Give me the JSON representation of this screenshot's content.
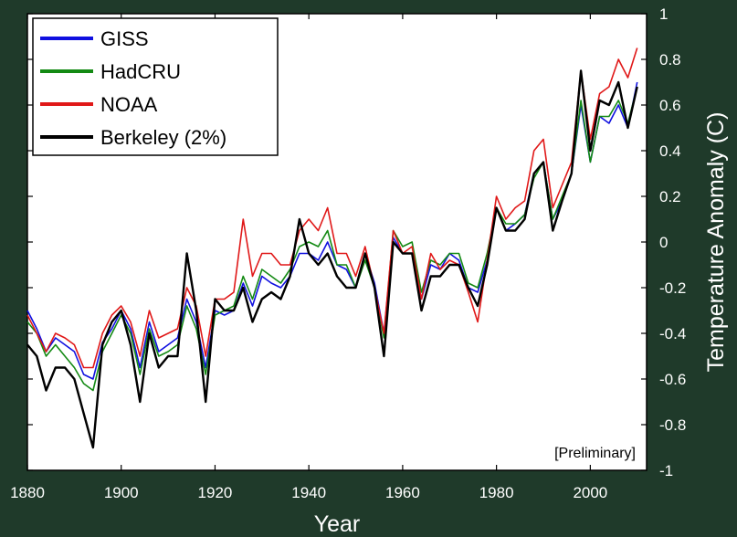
{
  "chart_data": {
    "type": "line",
    "title": "",
    "xlabel": "Year",
    "ylabel": "Temperature Anomaly (C)",
    "xlim": [
      1880,
      2012
    ],
    "ylim": [
      -1,
      1
    ],
    "x_ticks": [
      1880,
      1900,
      1920,
      1940,
      1960,
      1980,
      2000
    ],
    "y_ticks": [
      -1,
      -0.8,
      -0.6,
      -0.4,
      -0.2,
      0,
      0.2,
      0.4,
      0.6,
      0.8,
      1
    ],
    "y_tick_labels": [
      "-1",
      "-0.8",
      "-0.6",
      "-0.4",
      "-0.2",
      "0",
      "0.2",
      "0.4",
      "0.6",
      "0.8",
      "1"
    ],
    "grid": false,
    "legend_position": "top-left",
    "annotation": "[Preliminary]",
    "x": [
      1880,
      1882,
      1884,
      1886,
      1888,
      1890,
      1892,
      1894,
      1896,
      1898,
      1900,
      1902,
      1904,
      1906,
      1908,
      1910,
      1912,
      1914,
      1916,
      1918,
      1920,
      1922,
      1924,
      1926,
      1928,
      1930,
      1932,
      1934,
      1936,
      1938,
      1940,
      1942,
      1944,
      1946,
      1948,
      1950,
      1952,
      1954,
      1956,
      1958,
      1960,
      1962,
      1964,
      1966,
      1968,
      1970,
      1972,
      1974,
      1976,
      1978,
      1980,
      1982,
      1984,
      1986,
      1988,
      1990,
      1992,
      1994,
      1996,
      1998,
      2000,
      2002,
      2004,
      2006,
      2008,
      2010
    ],
    "series": [
      {
        "name": "GISS",
        "color": "#1010e0",
        "values": [
          -0.3,
          -0.38,
          -0.48,
          -0.42,
          -0.45,
          -0.48,
          -0.58,
          -0.6,
          -0.44,
          -0.38,
          -0.3,
          -0.38,
          -0.55,
          -0.35,
          -0.48,
          -0.45,
          -0.42,
          -0.25,
          -0.35,
          -0.55,
          -0.3,
          -0.32,
          -0.3,
          -0.18,
          -0.28,
          -0.15,
          -0.18,
          -0.2,
          -0.15,
          -0.05,
          -0.05,
          -0.08,
          0.0,
          -0.1,
          -0.12,
          -0.2,
          -0.05,
          -0.18,
          -0.4,
          0.02,
          -0.05,
          -0.05,
          -0.25,
          -0.1,
          -0.12,
          -0.05,
          -0.08,
          -0.2,
          -0.22,
          -0.08,
          0.15,
          0.05,
          0.08,
          0.12,
          0.3,
          0.35,
          0.1,
          0.18,
          0.3,
          0.6,
          0.35,
          0.55,
          0.52,
          0.6,
          0.5,
          0.7
        ]
      },
      {
        "name": "HadCRU",
        "color": "#148a14",
        "values": [
          -0.35,
          -0.4,
          -0.5,
          -0.45,
          -0.5,
          -0.55,
          -0.62,
          -0.65,
          -0.48,
          -0.4,
          -0.32,
          -0.4,
          -0.58,
          -0.38,
          -0.5,
          -0.48,
          -0.45,
          -0.28,
          -0.38,
          -0.58,
          -0.32,
          -0.3,
          -0.28,
          -0.15,
          -0.25,
          -0.12,
          -0.15,
          -0.18,
          -0.12,
          -0.02,
          0.0,
          -0.02,
          0.05,
          -0.1,
          -0.1,
          -0.2,
          -0.08,
          -0.2,
          -0.42,
          0.05,
          -0.02,
          0.0,
          -0.22,
          -0.08,
          -0.1,
          -0.05,
          -0.05,
          -0.18,
          -0.2,
          -0.05,
          0.15,
          0.08,
          0.08,
          0.12,
          0.28,
          0.35,
          0.1,
          0.2,
          0.3,
          0.62,
          0.35,
          0.55,
          0.55,
          0.62,
          0.52,
          0.68
        ]
      },
      {
        "name": "NOAA",
        "color": "#e01818",
        "values": [
          -0.32,
          -0.4,
          -0.48,
          -0.4,
          -0.42,
          -0.45,
          -0.55,
          -0.55,
          -0.4,
          -0.32,
          -0.28,
          -0.35,
          -0.5,
          -0.3,
          -0.42,
          -0.4,
          -0.38,
          -0.2,
          -0.28,
          -0.5,
          -0.25,
          -0.25,
          -0.22,
          0.1,
          -0.15,
          -0.05,
          -0.05,
          -0.1,
          -0.1,
          0.05,
          0.1,
          0.05,
          0.15,
          -0.05,
          -0.05,
          -0.15,
          -0.02,
          -0.2,
          -0.4,
          0.05,
          -0.05,
          -0.02,
          -0.25,
          -0.05,
          -0.12,
          -0.08,
          -0.1,
          -0.22,
          -0.35,
          -0.08,
          0.2,
          0.1,
          0.15,
          0.18,
          0.4,
          0.45,
          0.15,
          0.25,
          0.35,
          0.75,
          0.45,
          0.65,
          0.68,
          0.8,
          0.72,
          0.85
        ]
      },
      {
        "name": "Berkeley (2%)",
        "color": "#000000",
        "values": [
          -0.45,
          -0.5,
          -0.65,
          -0.55,
          -0.55,
          -0.6,
          -0.75,
          -0.9,
          -0.45,
          -0.35,
          -0.3,
          -0.45,
          -0.7,
          -0.4,
          -0.55,
          -0.5,
          -0.5,
          -0.05,
          -0.3,
          -0.7,
          -0.25,
          -0.3,
          -0.3,
          -0.2,
          -0.35,
          -0.25,
          -0.22,
          -0.25,
          -0.15,
          0.1,
          -0.05,
          -0.1,
          -0.05,
          -0.15,
          -0.2,
          -0.2,
          -0.05,
          -0.2,
          -0.5,
          0.0,
          -0.05,
          -0.05,
          -0.3,
          -0.15,
          -0.15,
          -0.1,
          -0.1,
          -0.2,
          -0.28,
          -0.1,
          0.15,
          0.05,
          0.05,
          0.1,
          0.3,
          0.35,
          0.05,
          0.18,
          0.3,
          0.75,
          0.4,
          0.62,
          0.6,
          0.7,
          0.5,
          0.68
        ]
      }
    ]
  }
}
